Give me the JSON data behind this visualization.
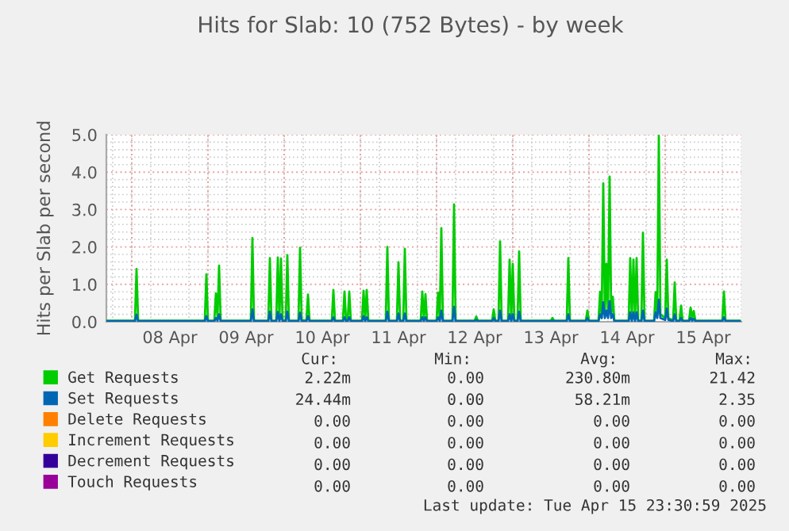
{
  "chart_data": {
    "type": "line",
    "title": "Hits for Slab: 10 (752 Bytes) - by week",
    "ylabel": "Hits per Slab per second",
    "x": [
      "2025-04-07T16:00",
      "2025-04-08T01:00",
      "2025-04-08T01:30",
      "2025-04-08T02:00",
      "2025-04-08T23:00",
      "2025-04-08T23:30",
      "2025-04-09T00:00",
      "2025-04-09T02:00",
      "2025-04-09T02:30",
      "2025-04-09T03:00",
      "2025-04-09T03:30",
      "2025-04-09T04:00",
      "2025-04-09T13:30",
      "2025-04-09T14:00",
      "2025-04-09T14:30",
      "2025-04-09T19:00",
      "2025-04-09T19:30",
      "2025-04-09T20:00",
      "2025-04-09T21:30",
      "2025-04-09T22:00",
      "2025-04-09T22:30",
      "2025-04-09T23:00",
      "2025-04-09T23:30",
      "2025-04-10T00:30",
      "2025-04-10T01:00",
      "2025-04-10T01:30",
      "2025-04-10T04:30",
      "2025-04-10T05:00",
      "2025-04-10T05:30",
      "2025-04-10T07:00",
      "2025-04-10T07:30",
      "2025-04-10T08:00",
      "2025-04-10T15:00",
      "2025-04-10T15:30",
      "2025-04-10T16:00",
      "2025-04-10T18:30",
      "2025-04-10T19:00",
      "2025-04-10T19:30",
      "2025-04-10T20:00",
      "2025-04-10T20:30",
      "2025-04-10T21:00",
      "2025-04-11T00:30",
      "2025-04-11T01:00",
      "2025-04-11T01:30",
      "2025-04-11T02:00",
      "2025-04-11T02:30",
      "2025-04-11T08:00",
      "2025-04-11T08:30",
      "2025-04-11T09:00",
      "2025-04-11T11:30",
      "2025-04-11T12:00",
      "2025-04-11T12:30",
      "2025-04-11T13:30",
      "2025-04-11T14:00",
      "2025-04-11T14:30",
      "2025-04-11T19:00",
      "2025-04-11T19:30",
      "2025-04-11T20:00",
      "2025-04-11T20:30",
      "2025-04-11T21:00",
      "2025-04-12T00:00",
      "2025-04-12T00:30",
      "2025-04-12T01:00",
      "2025-04-12T01:30",
      "2025-04-12T02:00",
      "2025-04-12T05:00",
      "2025-04-12T05:30",
      "2025-04-12T06:00",
      "2025-04-12T12:00",
      "2025-04-12T12:30",
      "2025-04-12T13:00",
      "2025-04-12T17:30",
      "2025-04-12T18:00",
      "2025-04-12T18:30",
      "2025-04-12T19:30",
      "2025-04-12T20:00",
      "2025-04-12T20:30",
      "2025-04-12T22:30",
      "2025-04-12T23:00",
      "2025-04-12T23:30",
      "2025-04-13T00:00",
      "2025-04-13T00:30",
      "2025-04-13T01:30",
      "2025-04-13T02:00",
      "2025-04-13T02:30",
      "2025-04-13T12:00",
      "2025-04-13T12:30",
      "2025-04-13T13:00",
      "2025-04-13T17:00",
      "2025-04-13T17:30",
      "2025-04-13T18:00",
      "2025-04-13T23:00",
      "2025-04-13T23:30",
      "2025-04-14T00:00",
      "2025-04-14T03:00",
      "2025-04-14T03:30",
      "2025-04-14T04:00",
      "2025-04-14T04:30",
      "2025-04-14T05:00",
      "2025-04-14T05:30",
      "2025-04-14T06:00",
      "2025-04-14T06:30",
      "2025-04-14T07:00",
      "2025-04-14T07:30",
      "2025-04-14T08:00",
      "2025-04-14T12:30",
      "2025-04-14T13:00",
      "2025-04-14T13:30",
      "2025-04-14T14:00",
      "2025-04-14T14:30",
      "2025-04-14T15:00",
      "2025-04-14T15:30",
      "2025-04-14T16:30",
      "2025-04-14T17:00",
      "2025-04-14T17:30",
      "2025-04-14T20:30",
      "2025-04-14T21:00",
      "2025-04-14T21:30",
      "2025-04-14T22:00",
      "2025-04-14T22:30",
      "2025-04-15T00:00",
      "2025-04-15T00:30",
      "2025-04-15T01:00",
      "2025-04-15T02:30",
      "2025-04-15T03:00",
      "2025-04-15T03:30",
      "2025-04-15T04:30",
      "2025-04-15T05:00",
      "2025-04-15T05:30",
      "2025-04-15T07:30",
      "2025-04-15T08:00",
      "2025-04-15T08:30",
      "2025-04-15T09:00",
      "2025-04-15T09:30",
      "2025-04-15T18:00",
      "2025-04-15T18:30",
      "2025-04-15T19:00",
      "2025-04-15T23:30"
    ],
    "series": [
      {
        "name": "Get Requests",
        "color": "#00cc00",
        "values": [
          0.03,
          0.03,
          1.41,
          0.03,
          0.03,
          1.27,
          0.03,
          0.03,
          0.76,
          0.1,
          1.5,
          0.03,
          0.03,
          2.24,
          0.03,
          0.03,
          1.7,
          0.03,
          0.03,
          1.72,
          0.05,
          1.69,
          0.05,
          0.03,
          1.78,
          0.03,
          0.03,
          1.98,
          0.05,
          0.03,
          0.73,
          0.03,
          0.03,
          0.85,
          0.03,
          0.03,
          0.81,
          0.03,
          0.03,
          0.81,
          0.03,
          0.03,
          0.83,
          0.05,
          0.85,
          0.03,
          0.03,
          2.0,
          0.03,
          0.03,
          1.59,
          0.03,
          0.03,
          1.95,
          0.03,
          0.03,
          0.81,
          0.05,
          0.74,
          0.03,
          0.03,
          0.78,
          0.05,
          2.5,
          0.03,
          0.03,
          3.14,
          0.03,
          0.03,
          0.14,
          0.03,
          0.03,
          0.33,
          0.03,
          0.03,
          2.15,
          0.03,
          0.03,
          1.66,
          0.05,
          1.55,
          0.03,
          0.03,
          1.88,
          0.03,
          0.03,
          0.1,
          0.03,
          0.03,
          1.7,
          0.03,
          0.03,
          0.3,
          0.03,
          0.03,
          0.8,
          0.1,
          3.7,
          0.2,
          1.55,
          0.2,
          3.88,
          0.2,
          0.67,
          0.03,
          0.03,
          1.7,
          0.05,
          1.66,
          0.05,
          1.7,
          0.03,
          0.03,
          2.38,
          0.03,
          0.03,
          0.79,
          0.2,
          4.97,
          0.2,
          0.1,
          1.66,
          0.1,
          0.03,
          1.05,
          0.03,
          0.03,
          0.43,
          0.03,
          0.03,
          0.38,
          0.1,
          0.29,
          0.03,
          0.03,
          0.81,
          0.03,
          0.03
        ]
      },
      {
        "name": "Set Requests",
        "color": "#0066b3",
        "values": [
          0.02,
          0.02,
          0.19,
          0.02,
          0.02,
          0.15,
          0.02,
          0.02,
          0.1,
          0.03,
          0.2,
          0.02,
          0.02,
          0.33,
          0.02,
          0.02,
          0.27,
          0.02,
          0.02,
          0.26,
          0.02,
          0.2,
          0.02,
          0.02,
          0.27,
          0.02,
          0.02,
          0.24,
          0.02,
          0.02,
          0.15,
          0.02,
          0.02,
          0.12,
          0.02,
          0.02,
          0.12,
          0.02,
          0.02,
          0.12,
          0.02,
          0.02,
          0.15,
          0.02,
          0.12,
          0.02,
          0.02,
          0.27,
          0.02,
          0.02,
          0.22,
          0.02,
          0.02,
          0.22,
          0.02,
          0.02,
          0.12,
          0.02,
          0.12,
          0.02,
          0.02,
          0.12,
          0.02,
          0.3,
          0.02,
          0.02,
          0.4,
          0.02,
          0.02,
          0.05,
          0.02,
          0.02,
          0.1,
          0.02,
          0.02,
          0.3,
          0.02,
          0.02,
          0.2,
          0.02,
          0.2,
          0.02,
          0.02,
          0.27,
          0.02,
          0.02,
          0.03,
          0.02,
          0.02,
          0.2,
          0.02,
          0.02,
          0.1,
          0.02,
          0.02,
          0.2,
          0.1,
          0.52,
          0.1,
          0.3,
          0.1,
          0.55,
          0.1,
          0.2,
          0.02,
          0.02,
          0.25,
          0.02,
          0.25,
          0.02,
          0.25,
          0.02,
          0.02,
          0.3,
          0.02,
          0.02,
          0.25,
          0.1,
          0.59,
          0.1,
          0.05,
          0.35,
          0.05,
          0.02,
          0.2,
          0.02,
          0.02,
          0.1,
          0.02,
          0.02,
          0.1,
          0.03,
          0.08,
          0.02,
          0.02,
          0.12,
          0.02,
          0.02
        ]
      },
      {
        "name": "Delete Requests",
        "color": "#ff8000",
        "values": [
          null,
          null,
          null,
          null,
          null,
          null,
          null,
          null,
          null,
          null,
          null,
          null,
          null,
          null,
          null,
          null,
          null,
          null,
          null,
          null,
          null,
          null,
          null,
          null,
          null,
          null,
          null,
          null,
          null,
          null,
          null,
          null,
          null,
          null,
          null,
          null,
          null,
          null,
          null,
          null,
          null,
          null,
          null,
          null,
          null,
          null,
          null,
          null,
          null,
          null,
          null,
          null,
          null,
          null,
          null,
          null,
          null,
          null,
          null,
          null,
          null,
          null,
          null,
          null,
          null,
          null,
          null,
          null,
          null,
          null,
          null,
          null,
          null,
          null,
          null,
          null,
          null,
          null,
          null,
          null,
          null,
          null,
          null,
          null,
          null,
          null,
          null,
          null,
          null,
          null,
          null,
          null,
          null,
          null,
          null,
          null,
          null,
          null,
          null,
          null,
          null,
          null,
          null,
          null,
          null,
          null,
          null,
          null,
          null,
          null,
          null,
          null,
          null,
          null,
          null,
          null,
          null,
          null,
          null,
          null,
          null,
          null,
          null,
          null,
          null,
          null,
          null,
          null,
          null,
          null,
          null,
          null,
          null,
          null,
          null,
          null,
          null,
          null
        ]
      },
      {
        "name": "Increment Requests",
        "color": "#ffcc00",
        "values": [
          null,
          null,
          null,
          null,
          null,
          null,
          null,
          null,
          null,
          null,
          null,
          null,
          null,
          null,
          null,
          null,
          null,
          null,
          null,
          null,
          null,
          null,
          null,
          null,
          null,
          null,
          null,
          null,
          null,
          null,
          null,
          null,
          null,
          null,
          null,
          null,
          null,
          null,
          null,
          null,
          null,
          null,
          null,
          null,
          null,
          null,
          null,
          null,
          null,
          null,
          null,
          null,
          null,
          null,
          null,
          null,
          null,
          null,
          null,
          null,
          null,
          null,
          null,
          null,
          null,
          null,
          null,
          null,
          null,
          null,
          null,
          null,
          null,
          null,
          null,
          null,
          null,
          null,
          null,
          null,
          null,
          null,
          null,
          null,
          null,
          null,
          null,
          null,
          null,
          null,
          null,
          null,
          null,
          null,
          null,
          null,
          null,
          null,
          null,
          null,
          null,
          null,
          null,
          null,
          null,
          null,
          null,
          null,
          null,
          null,
          null,
          null,
          null,
          null,
          null,
          null,
          null,
          null,
          null,
          null,
          null,
          null,
          null,
          null,
          null,
          null,
          null,
          null,
          null,
          null,
          null,
          null,
          null,
          null,
          null,
          null,
          null,
          null
        ]
      },
      {
        "name": "Decrement Requests",
        "color": "#330099",
        "values": [
          null,
          null,
          null,
          null,
          null,
          null,
          null,
          null,
          null,
          null,
          null,
          null,
          null,
          null,
          null,
          null,
          null,
          null,
          null,
          null,
          null,
          null,
          null,
          null,
          null,
          null,
          null,
          null,
          null,
          null,
          null,
          null,
          null,
          null,
          null,
          null,
          null,
          null,
          null,
          null,
          null,
          null,
          null,
          null,
          null,
          null,
          null,
          null,
          null,
          null,
          null,
          null,
          null,
          null,
          null,
          null,
          null,
          null,
          null,
          null,
          null,
          null,
          null,
          null,
          null,
          null,
          null,
          null,
          null,
          null,
          null,
          null,
          null,
          null,
          null,
          null,
          null,
          null,
          null,
          null,
          null,
          null,
          null,
          null,
          null,
          null,
          null,
          null,
          null,
          null,
          null,
          null,
          null,
          null,
          null,
          null,
          null,
          null,
          null,
          null,
          null,
          null,
          null,
          null,
          null,
          null,
          null,
          null,
          null,
          null,
          null,
          null,
          null,
          null,
          null,
          null,
          null,
          null,
          null,
          null,
          null,
          null,
          null,
          null,
          null,
          null,
          null,
          null,
          null,
          null,
          null,
          null,
          null,
          null,
          null,
          null,
          null,
          null
        ]
      },
      {
        "name": "Touch Requests",
        "color": "#990099",
        "values": [
          null,
          null,
          null,
          null,
          null,
          null,
          null,
          null,
          null,
          null,
          null,
          null,
          null,
          null,
          null,
          null,
          null,
          null,
          null,
          null,
          null,
          null,
          null,
          null,
          null,
          null,
          null,
          null,
          null,
          null,
          null,
          null,
          null,
          null,
          null,
          null,
          null,
          null,
          null,
          null,
          null,
          null,
          null,
          null,
          null,
          null,
          null,
          null,
          null,
          null,
          null,
          null,
          null,
          null,
          null,
          null,
          null,
          null,
          null,
          null,
          null,
          null,
          null,
          null,
          null,
          null,
          null,
          null,
          null,
          null,
          null,
          null,
          null,
          null,
          null,
          null,
          null,
          null,
          null,
          null,
          null,
          null,
          null,
          null,
          null,
          null,
          null,
          null,
          null,
          null,
          null,
          null,
          null,
          null,
          null,
          null,
          null,
          null,
          null,
          null,
          null,
          null,
          null,
          null,
          null,
          null,
          null,
          null,
          null,
          null,
          null,
          null,
          null,
          null,
          null,
          null,
          null,
          null,
          null,
          null,
          null,
          null,
          null,
          null,
          null,
          null,
          null,
          null,
          null,
          null,
          null,
          null,
          null,
          null,
          null,
          null,
          null,
          null
        ]
      }
    ],
    "xlim": [
      "2025-04-07T16:00",
      "2025-04-16T00:00"
    ],
    "xticks": [
      {
        "value": "2025-04-08T12:00",
        "label": "08 Apr"
      },
      {
        "value": "2025-04-09T12:00",
        "label": "09 Apr"
      },
      {
        "value": "2025-04-10T12:00",
        "label": "10 Apr"
      },
      {
        "value": "2025-04-11T12:00",
        "label": "11 Apr"
      },
      {
        "value": "2025-04-12T12:00",
        "label": "12 Apr"
      },
      {
        "value": "2025-04-13T12:00",
        "label": "13 Apr"
      },
      {
        "value": "2025-04-14T12:00",
        "label": "14 Apr"
      },
      {
        "value": "2025-04-15T12:00",
        "label": "15 Apr"
      }
    ],
    "ylim": [
      0,
      5
    ],
    "yticks": [
      {
        "value": 0,
        "label": "0.0"
      },
      {
        "value": 1,
        "label": "1.0"
      },
      {
        "value": 2,
        "label": "2.0"
      },
      {
        "value": 3,
        "label": "3.0"
      },
      {
        "value": 4,
        "label": "4.0"
      },
      {
        "value": 5,
        "label": "5.0"
      }
    ],
    "grid": true,
    "legend": "bottom",
    "line_style": "solid",
    "marker": "none",
    "annotations": [
      "Cur:",
      "Min:",
      "Avg:",
      "Max:",
      "2.22m",
      "0.00",
      "230.80m",
      "21.42",
      "24.44m",
      "0.00",
      "58.21m",
      "2.35",
      "0.00",
      "0.00",
      "0.00",
      "0.00",
      "0.00",
      "0.00",
      "0.00",
      "0.00",
      "0.00",
      "0.00",
      "0.00",
      "0.00",
      "0.00",
      "0.00",
      "0.00",
      "0.00",
      "Last update: Tue Apr 15 23:30:59 2025"
    ]
  }
}
